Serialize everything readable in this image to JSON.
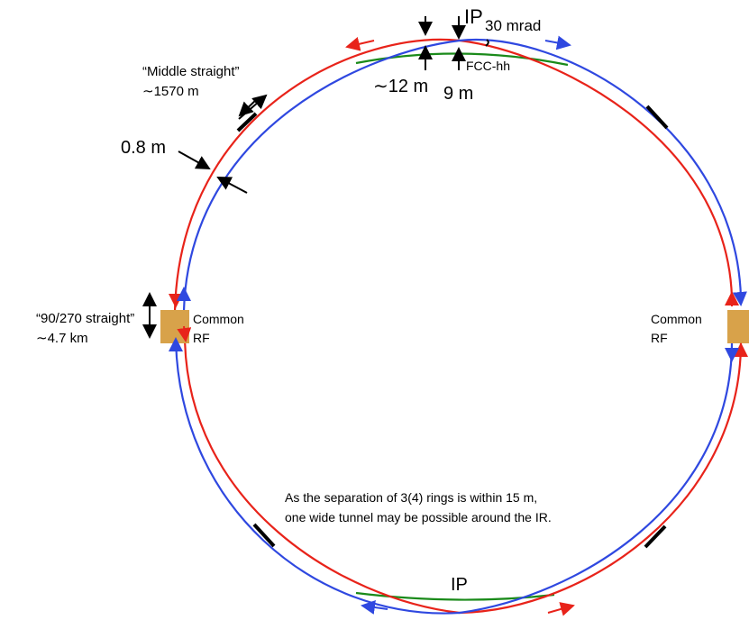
{
  "top_ip": {
    "label": "IP",
    "angle": "30 mrad",
    "ring": "FCC-hh",
    "left_gap": "∼12 m",
    "right_gap": "9 m"
  },
  "middle_straight": {
    "name": "“Middle straight”",
    "length": "∼1570 m"
  },
  "separation": "0.8 m",
  "straight_90_270": {
    "name": "“90/270 straight”",
    "length": "∼4.7 km"
  },
  "rf_left": {
    "line1": "Common",
    "line2": "RF"
  },
  "rf_right": {
    "line1": "Common",
    "line2": "RF"
  },
  "note": {
    "line1": "As the separation of 3(4) rings is within 15 m,",
    "line2": "one wide tunnel may be possible around the IR."
  },
  "bottom_ip": {
    "label": "IP"
  }
}
